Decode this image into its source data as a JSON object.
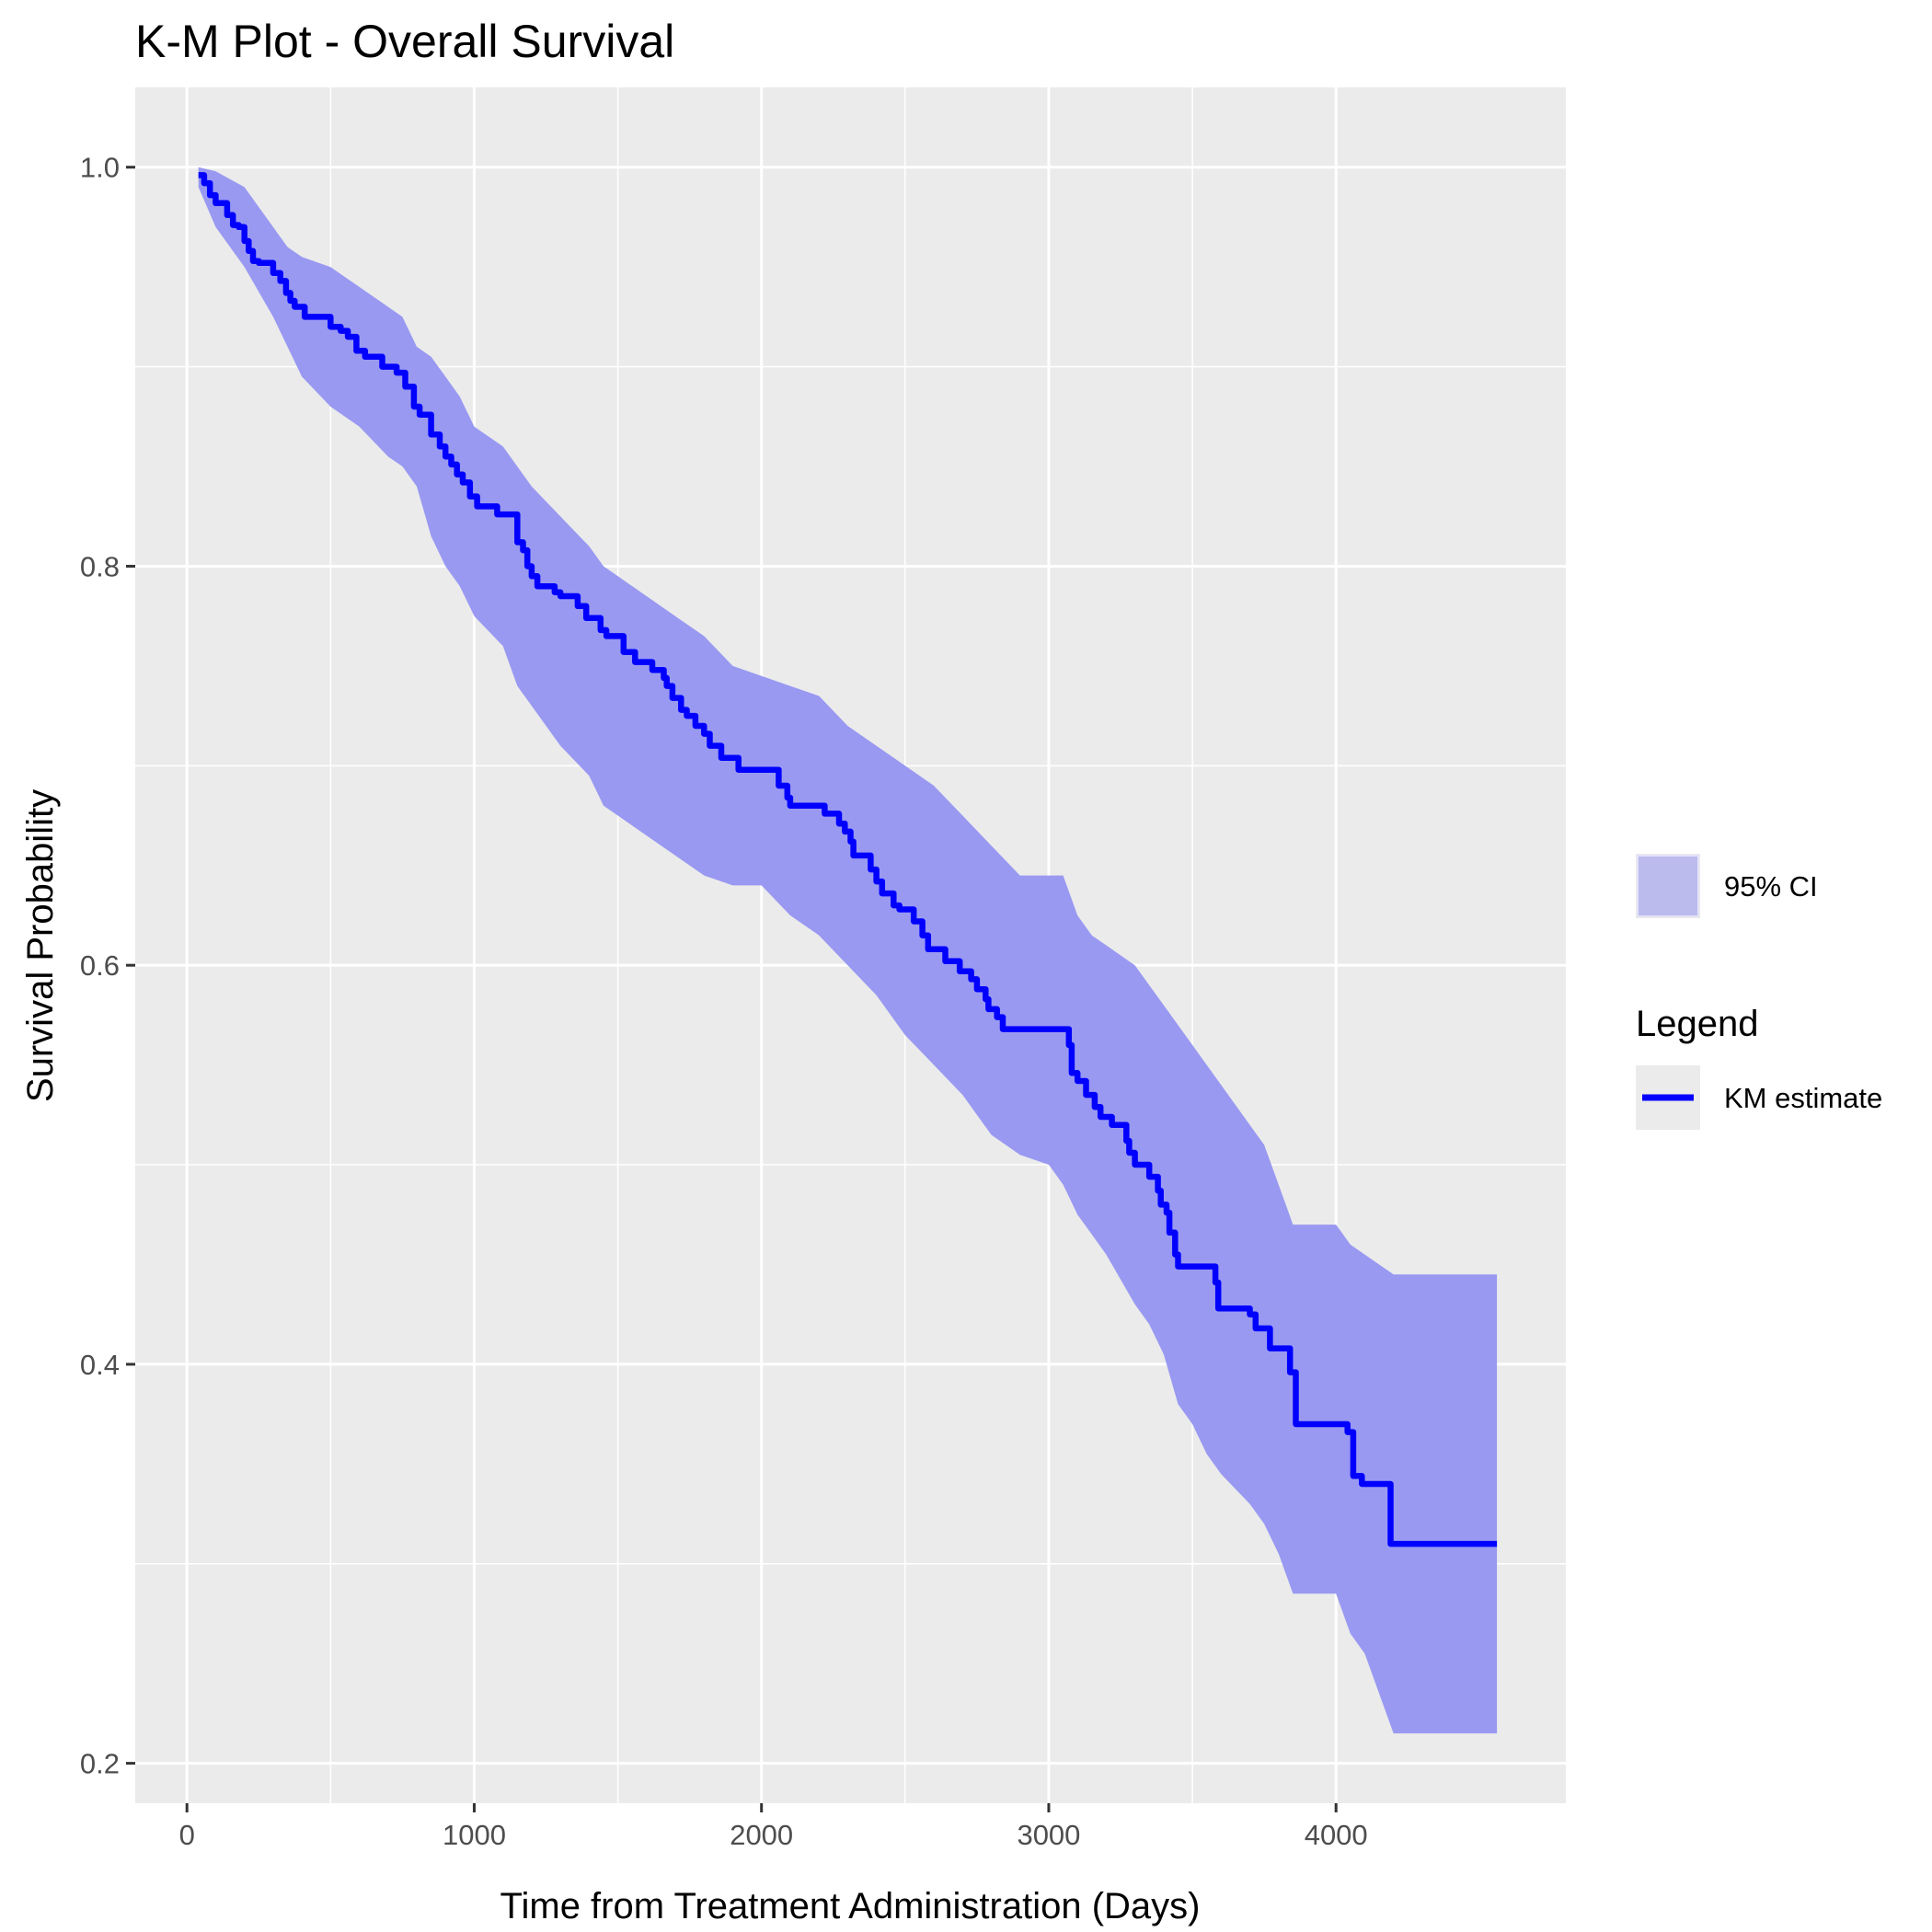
{
  "chart_data": {
    "type": "line",
    "title": "K-M Plot - Overall Survival",
    "xlabel": "Time from Treatment Administration (Days)",
    "ylabel": "Survival Probability",
    "xlim": [
      -180,
      4800
    ],
    "ylim": [
      0.18,
      1.04
    ],
    "x_ticks": [
      0,
      1000,
      2000,
      3000,
      4000
    ],
    "x_tick_labels": [
      "0",
      "1000",
      "2000",
      "3000",
      "4000"
    ],
    "y_ticks": [
      0.2,
      0.4,
      0.6,
      0.8,
      1.0
    ],
    "y_tick_labels": [
      "0.2",
      "0.4",
      "0.6",
      "0.8",
      "1.0"
    ],
    "grid": true,
    "legend_placement": "right",
    "legend": {
      "fill_label": "95% CI",
      "title": "Legend",
      "line_label": "KM estimate"
    },
    "colors": {
      "km_line": "#0000ff",
      "ci_fill": "#9999f2",
      "panel_background": "#ebebeb",
      "grid": "#ffffff"
    },
    "series": [
      {
        "name": "KM estimate",
        "style": "step",
        "x": [
          40,
          60,
          80,
          100,
          140,
          160,
          180,
          200,
          215,
          230,
          250,
          300,
          325,
          345,
          360,
          375,
          410,
          500,
          535,
          560,
          590,
          620,
          680,
          730,
          760,
          790,
          810,
          850,
          860,
          880,
          900,
          920,
          940,
          960,
          985,
          1010,
          1080,
          1150,
          1170,
          1185,
          1200,
          1220,
          1280,
          1300,
          1360,
          1390,
          1440,
          1460,
          1520,
          1560,
          1620,
          1660,
          1670,
          1690,
          1720,
          1740,
          1770,
          1800,
          1820,
          1860,
          1920,
          2060,
          2090,
          2100,
          2220,
          2270,
          2290,
          2310,
          2320,
          2380,
          2400,
          2420,
          2460,
          2480,
          2530,
          2560,
          2580,
          2640,
          2690,
          2730,
          2750,
          2780,
          2790,
          2820,
          2840,
          3070,
          3080,
          3100,
          3130,
          3160,
          3180,
          3220,
          3270,
          3280,
          3300,
          3350,
          3380,
          3390,
          3410,
          3420,
          3440,
          3450,
          3580,
          3590,
          3700,
          3720,
          3770,
          3840,
          3860,
          4040,
          4060,
          4090,
          4190,
          4200,
          4560
        ],
        "values": [
          0.996,
          0.992,
          0.986,
          0.982,
          0.976,
          0.971,
          0.97,
          0.963,
          0.958,
          0.953,
          0.952,
          0.947,
          0.943,
          0.937,
          0.933,
          0.93,
          0.925,
          0.92,
          0.918,
          0.915,
          0.908,
          0.905,
          0.9,
          0.897,
          0.89,
          0.88,
          0.876,
          0.866,
          0.866,
          0.86,
          0.855,
          0.851,
          0.846,
          0.842,
          0.835,
          0.83,
          0.826,
          0.812,
          0.808,
          0.8,
          0.795,
          0.79,
          0.787,
          0.785,
          0.78,
          0.774,
          0.768,
          0.765,
          0.757,
          0.752,
          0.748,
          0.744,
          0.74,
          0.734,
          0.728,
          0.725,
          0.72,
          0.716,
          0.71,
          0.704,
          0.698,
          0.69,
          0.684,
          0.68,
          0.676,
          0.671,
          0.667,
          0.662,
          0.655,
          0.648,
          0.642,
          0.636,
          0.63,
          0.628,
          0.622,
          0.615,
          0.608,
          0.602,
          0.597,
          0.593,
          0.588,
          0.583,
          0.578,
          0.574,
          0.568,
          0.56,
          0.546,
          0.542,
          0.535,
          0.529,
          0.524,
          0.52,
          0.512,
          0.506,
          0.5,
          0.494,
          0.487,
          0.48,
          0.476,
          0.466,
          0.455,
          0.449,
          0.441,
          0.428,
          0.425,
          0.418,
          0.408,
          0.396,
          0.37,
          0.366,
          0.344,
          0.34,
          0.31,
          0.31,
          0.31
        ]
      }
    ],
    "ci_band": {
      "name": "95% CI",
      "x": [
        40,
        100,
        200,
        300,
        350,
        400,
        500,
        600,
        700,
        750,
        800,
        850,
        900,
        950,
        1000,
        1100,
        1150,
        1200,
        1300,
        1400,
        1450,
        1500,
        1600,
        1700,
        1800,
        1900,
        2000,
        2100,
        2200,
        2300,
        2400,
        2500,
        2600,
        2700,
        2800,
        2900,
        3000,
        3050,
        3100,
        3150,
        3200,
        3300,
        3350,
        3400,
        3450,
        3500,
        3550,
        3600,
        3700,
        3750,
        3800,
        3850,
        4000,
        4050,
        4100,
        4200,
        4560
      ],
      "upper": [
        1.0,
        0.998,
        0.99,
        0.97,
        0.96,
        0.955,
        0.95,
        0.94,
        0.93,
        0.925,
        0.91,
        0.905,
        0.895,
        0.885,
        0.87,
        0.86,
        0.85,
        0.84,
        0.825,
        0.81,
        0.8,
        0.795,
        0.785,
        0.775,
        0.765,
        0.75,
        0.745,
        0.74,
        0.735,
        0.72,
        0.71,
        0.7,
        0.69,
        0.675,
        0.66,
        0.645,
        0.645,
        0.645,
        0.625,
        0.615,
        0.61,
        0.6,
        0.59,
        0.58,
        0.57,
        0.56,
        0.55,
        0.54,
        0.52,
        0.51,
        0.49,
        0.47,
        0.47,
        0.46,
        0.455,
        0.445,
        0.445
      ],
      "lower": [
        0.99,
        0.97,
        0.95,
        0.925,
        0.91,
        0.895,
        0.88,
        0.87,
        0.855,
        0.85,
        0.84,
        0.815,
        0.8,
        0.79,
        0.775,
        0.76,
        0.74,
        0.73,
        0.71,
        0.695,
        0.68,
        0.675,
        0.665,
        0.655,
        0.645,
        0.64,
        0.64,
        0.625,
        0.615,
        0.6,
        0.585,
        0.565,
        0.55,
        0.535,
        0.515,
        0.505,
        0.5,
        0.49,
        0.475,
        0.465,
        0.455,
        0.43,
        0.42,
        0.405,
        0.38,
        0.37,
        0.355,
        0.345,
        0.33,
        0.32,
        0.305,
        0.285,
        0.285,
        0.265,
        0.255,
        0.215,
        0.215
      ]
    }
  }
}
